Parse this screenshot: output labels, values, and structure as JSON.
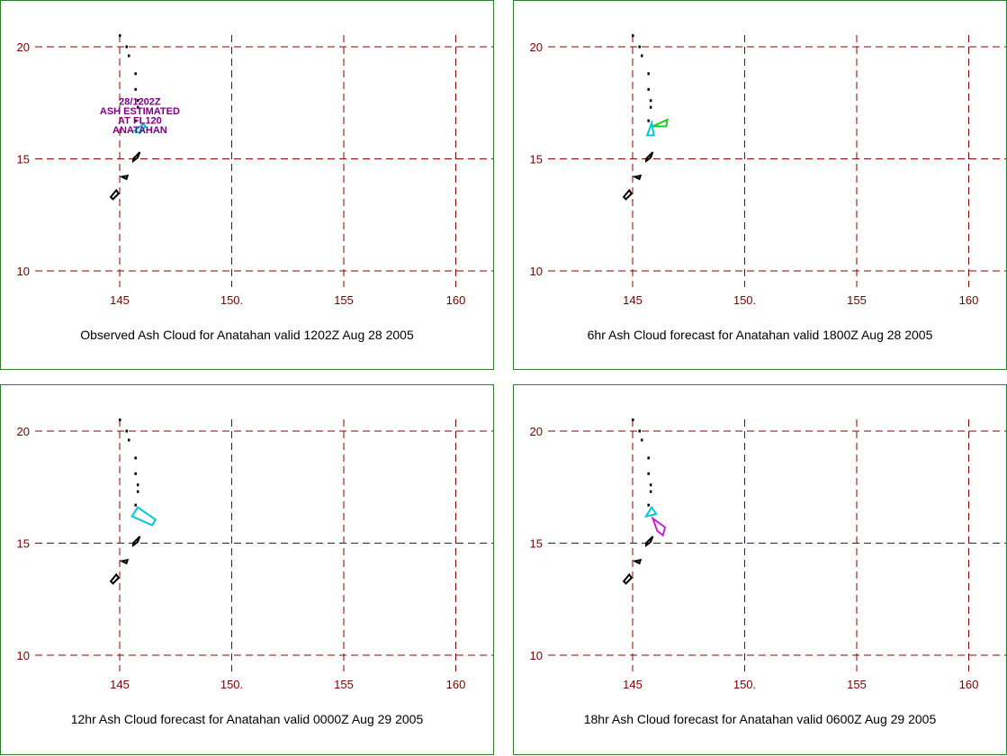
{
  "colors": {
    "grid": "#8b0000",
    "tick_label": "#7a0000",
    "border": "#2e7d32",
    "coast": "#000000",
    "observed_cloud": "#00c8d8",
    "forecast_6hr": "#22cc22",
    "forecast_12hr": "#00c8d8",
    "forecast_18hr": "#cc22cc",
    "annotation": "#800080"
  },
  "map": {
    "lon_ticks": [
      "145",
      "150.",
      "155",
      "160"
    ],
    "lat_ticks": [
      "20",
      "15",
      "10"
    ]
  },
  "panels": [
    {
      "title": "Observed Ash Cloud for Anatahan valid 1202Z Aug 28 2005",
      "annotation": [
        "28/1202Z",
        "ASH ESTIMATED",
        "AT FL120",
        "ANATAHAN"
      ],
      "cloud_color_key": "observed_cloud",
      "cloud_polygons": [
        [
          [
            145.65,
            16.25
          ],
          [
            146.05,
            16.55
          ],
          [
            146.15,
            16.45
          ],
          [
            145.9,
            16.15
          ]
        ]
      ]
    },
    {
      "title": "6hr Ash Cloud forecast for Anatahan valid 1800Z Aug 28 2005",
      "annotation": [],
      "cloud_color_key": "forecast_6hr",
      "cloud_polygons": [
        [
          [
            145.65,
            16.05
          ],
          [
            145.85,
            16.6
          ],
          [
            145.95,
            16.05
          ]
        ],
        [
          [
            145.9,
            16.45
          ],
          [
            146.55,
            16.75
          ],
          [
            146.5,
            16.45
          ]
        ]
      ]
    },
    {
      "title": "12hr Ash Cloud forecast for Anatahan valid 0000Z Aug 29 2005",
      "annotation": [],
      "cloud_color_key": "forecast_12hr",
      "cloud_polygons": [
        [
          [
            145.55,
            16.2
          ],
          [
            145.8,
            16.6
          ],
          [
            146.6,
            16.05
          ],
          [
            146.45,
            15.8
          ]
        ]
      ]
    },
    {
      "title": "18hr Ash Cloud forecast for Anatahan valid 0600Z Aug 29 2005",
      "annotation": [],
      "cloud_color_key": "forecast_18hr",
      "cloud_polygons": [
        [
          [
            145.6,
            16.2
          ],
          [
            145.85,
            16.6
          ],
          [
            146.05,
            16.3
          ]
        ],
        [
          [
            145.9,
            16.1
          ],
          [
            146.45,
            15.7
          ],
          [
            146.35,
            15.35
          ],
          [
            146.1,
            15.55
          ]
        ]
      ]
    }
  ]
}
